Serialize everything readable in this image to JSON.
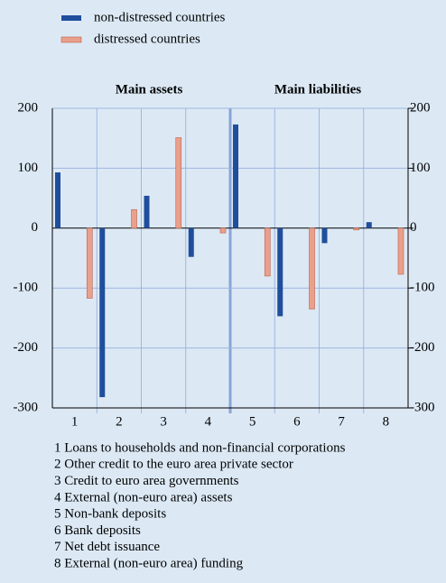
{
  "chart_data": {
    "type": "bar",
    "panel_labels": [
      "Main assets",
      "Main liabilities"
    ],
    "categories": [
      "1",
      "2",
      "3",
      "4",
      "5",
      "6",
      "7",
      "8"
    ],
    "series": [
      {
        "name": "non-distressed countries",
        "color": "#1f4e9c",
        "values": [
          93,
          -282,
          54,
          -48,
          173,
          -147,
          -25,
          10
        ]
      },
      {
        "name": "distressed countries",
        "color": "#e9a08c",
        "values": [
          -117,
          31,
          151,
          -8,
          -80,
          -135,
          -3,
          -77
        ]
      }
    ],
    "ylim": [
      -300,
      200
    ],
    "yticks": [
      -300,
      -200,
      -100,
      0,
      100,
      200
    ],
    "y2lim": [
      -300,
      200
    ],
    "y2ticks": [
      -300,
      -200,
      -100,
      0,
      100,
      200
    ],
    "grid": true,
    "notes": [
      "1 Loans to households and non-financial corporations",
      "2 Other credit to the euro area private sector",
      "3 Credit to euro area governments",
      "4 External (non-euro area) assets",
      "5 Non-bank deposits",
      "6 Bank deposits",
      "7 Net debt issuance",
      "8 External (non-euro area) funding"
    ]
  }
}
